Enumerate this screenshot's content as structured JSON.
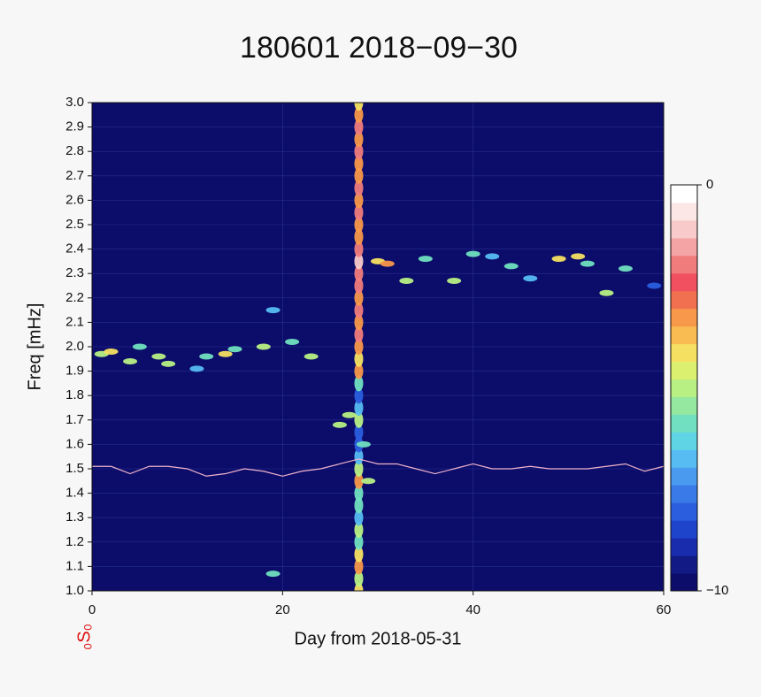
{
  "chart_data": {
    "type": "heatmap",
    "title": "180601 2018−09−30",
    "x_label": "Day from 2018-05-31",
    "y_label": "Freq [mHz]",
    "annotation": "₀S₀",
    "xlim": [
      0,
      60
    ],
    "xticks": [
      0,
      20,
      40,
      60
    ],
    "ylim": [
      1.0,
      3.0
    ],
    "yticks": [
      {
        "value": 1.0,
        "label": "1.0"
      },
      1.1,
      1.2,
      1.3,
      1.4,
      1.5,
      1.6,
      1.7,
      1.8,
      1.9,
      {
        "value": 2.0,
        "label": "2.0"
      },
      2.1,
      2.2,
      2.3,
      2.4,
      2.5,
      2.6,
      2.7,
      2.8,
      2.9,
      {
        "value": 3.0,
        "label": "3.0"
      }
    ],
    "clim": [
      -10,
      0
    ],
    "cticks": [
      0,
      {
        "value": -10,
        "label": "−10"
      }
    ],
    "colorscale": [
      "#0c0c6a",
      "#121a86",
      "#1a2cae",
      "#1e44cc",
      "#2a5ede",
      "#3a7ae8",
      "#4a9af0",
      "#56bcf2",
      "#5ed4e4",
      "#70e0c0",
      "#94e8a0",
      "#b8f084",
      "#dcf070",
      "#f6e062",
      "#f8bc52",
      "#f8984a",
      "#f07050",
      "#f05060",
      "#f07c7c",
      "#f4a4a4",
      "#f8caca",
      "#fce6e6",
      "#ffffff"
    ],
    "grid": true,
    "spots": {
      "x": [
        28,
        28,
        28,
        28,
        28,
        28,
        28,
        28,
        28,
        28,
        28,
        28,
        28,
        28,
        28,
        28,
        28,
        28,
        28,
        28,
        28,
        28,
        28,
        28,
        28,
        28,
        28,
        28,
        28,
        28,
        28,
        28,
        28,
        28,
        28,
        28,
        28,
        28,
        28,
        28,
        28,
        1,
        2,
        4,
        5,
        7,
        8,
        11,
        12,
        14,
        15,
        18,
        19,
        21,
        23,
        26,
        27,
        30,
        31,
        33,
        35,
        38,
        40,
        42,
        44,
        46,
        49,
        51,
        52,
        54,
        56,
        59,
        19,
        28.5,
        29
      ],
      "y": [
        1.0,
        1.05,
        1.1,
        1.15,
        1.2,
        1.25,
        1.3,
        1.35,
        1.4,
        1.45,
        1.5,
        1.55,
        1.6,
        1.65,
        1.7,
        1.75,
        1.8,
        1.85,
        1.9,
        1.95,
        2.0,
        2.05,
        2.1,
        2.15,
        2.2,
        2.25,
        2.3,
        2.35,
        2.4,
        2.45,
        2.5,
        2.55,
        2.6,
        2.65,
        2.7,
        2.75,
        2.8,
        2.85,
        2.9,
        2.95,
        3.0,
        1.97,
        1.98,
        1.94,
        2.0,
        1.96,
        1.93,
        1.91,
        1.96,
        1.97,
        1.99,
        2.0,
        2.15,
        2.02,
        1.96,
        1.68,
        1.72,
        2.35,
        2.34,
        2.27,
        2.36,
        2.27,
        2.38,
        2.37,
        2.33,
        2.28,
        2.36,
        2.37,
        2.34,
        2.22,
        2.32,
        2.25,
        1.07,
        1.6,
        1.45
      ],
      "values": [
        -4,
        -5,
        -3,
        -4,
        -6,
        -5,
        -7,
        -6,
        -6,
        -3,
        -5,
        -7,
        -8,
        -8,
        -5,
        -7,
        -8,
        -6,
        -3,
        -4,
        -3,
        -2,
        -3,
        -2,
        -3,
        -2,
        -2,
        -1,
        -2,
        -3,
        -3,
        -2,
        -3,
        -2,
        -3,
        -3,
        -2,
        -3,
        -2,
        -3,
        -4,
        -5,
        -4,
        -5,
        -6,
        -5,
        -5,
        -7,
        -6,
        -4,
        -6,
        -5,
        -7,
        -6,
        -5,
        -5,
        -5,
        -4,
        -3,
        -5,
        -6,
        -5,
        -6,
        -7,
        -6,
        -7,
        -4,
        -4,
        -6,
        -5,
        -6,
        -8,
        -6,
        -6,
        -5
      ]
    },
    "series": [
      {
        "color": "#f0b4cc",
        "x": [
          0,
          2,
          4,
          6,
          8,
          10,
          12,
          14,
          16,
          18,
          20,
          22,
          24,
          26,
          28,
          30,
          32,
          34,
          36,
          38,
          40,
          42,
          44,
          46,
          48,
          50,
          52,
          54,
          56,
          58,
          60
        ],
        "values": [
          1.51,
          1.51,
          1.48,
          1.51,
          1.51,
          1.5,
          1.47,
          1.48,
          1.5,
          1.49,
          1.47,
          1.49,
          1.5,
          1.52,
          1.54,
          1.52,
          1.52,
          1.5,
          1.48,
          1.5,
          1.52,
          1.5,
          1.5,
          1.51,
          1.5,
          1.5,
          1.5,
          1.51,
          1.52,
          1.49,
          1.51
        ]
      }
    ]
  }
}
